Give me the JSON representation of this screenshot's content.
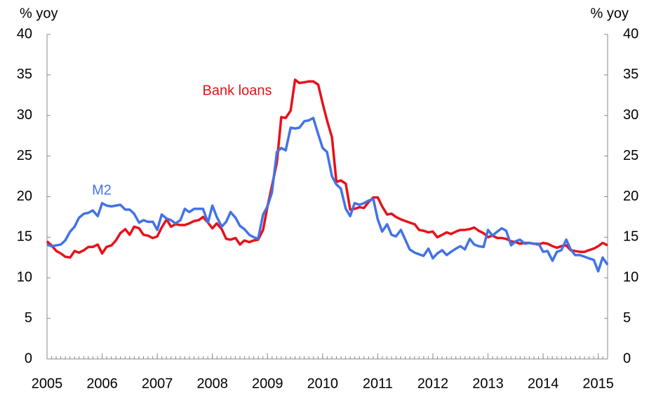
{
  "chart_data": {
    "type": "line",
    "ylabel": "% yoy",
    "y2label": "% yoy",
    "x": [
      2005,
      2005.08,
      2005.17,
      2005.25,
      2005.33,
      2005.42,
      2005.5,
      2005.58,
      2005.67,
      2005.75,
      2005.83,
      2005.92,
      2006,
      2006.08,
      2006.17,
      2006.25,
      2006.33,
      2006.42,
      2006.5,
      2006.58,
      2006.67,
      2006.75,
      2006.83,
      2006.92,
      2007,
      2007.08,
      2007.17,
      2007.25,
      2007.33,
      2007.42,
      2007.5,
      2007.58,
      2007.67,
      2007.75,
      2007.83,
      2007.92,
      2008,
      2008.08,
      2008.17,
      2008.25,
      2008.33,
      2008.42,
      2008.5,
      2008.58,
      2008.67,
      2008.75,
      2008.83,
      2008.92,
      2009,
      2009.08,
      2009.17,
      2009.25,
      2009.33,
      2009.42,
      2009.5,
      2009.58,
      2009.67,
      2009.75,
      2009.83,
      2009.92,
      2010,
      2010.08,
      2010.17,
      2010.25,
      2010.33,
      2010.42,
      2010.5,
      2010.58,
      2010.67,
      2010.75,
      2010.83,
      2010.92,
      2011,
      2011.08,
      2011.17,
      2011.25,
      2011.33,
      2011.42,
      2011.5,
      2011.58,
      2011.67,
      2011.75,
      2011.83,
      2011.92,
      2012,
      2012.08,
      2012.17,
      2012.25,
      2012.33,
      2012.42,
      2012.5,
      2012.58,
      2012.67,
      2012.75,
      2012.83,
      2012.92,
      2013,
      2013.08,
      2013.17,
      2013.25,
      2013.33,
      2013.42,
      2013.5,
      2013.58,
      2013.67,
      2013.75,
      2013.83,
      2013.92,
      2014,
      2014.08,
      2014.17,
      2014.25,
      2014.33,
      2014.42,
      2014.5,
      2014.58,
      2014.67,
      2014.75,
      2014.83,
      2014.92,
      2015,
      2015.08,
      2015.17
    ],
    "series": [
      {
        "name": "Bank loans",
        "color": "#e8101a",
        "values": [
          14.5,
          14.0,
          13.3,
          13.0,
          12.6,
          12.5,
          13.3,
          13.1,
          13.4,
          13.8,
          13.8,
          14.1,
          13.0,
          13.8,
          14.0,
          14.6,
          15.5,
          16.0,
          15.3,
          16.3,
          16.1,
          15.3,
          15.2,
          14.9,
          15.1,
          16.2,
          17.2,
          16.3,
          16.6,
          16.5,
          16.5,
          16.7,
          17.0,
          17.1,
          17.5,
          16.8,
          16.1,
          16.7,
          16.0,
          14.8,
          14.7,
          14.9,
          14.1,
          14.6,
          14.4,
          14.6,
          14.7,
          15.9,
          18.8,
          21.3,
          24.2,
          29.8,
          29.7,
          30.6,
          34.4,
          34.0,
          34.1,
          34.2,
          34.2,
          33.8,
          31.5,
          29.4,
          27.3,
          21.8,
          22.0,
          21.6,
          18.4,
          18.5,
          18.7,
          18.6,
          19.3,
          19.9,
          19.9,
          18.8,
          17.8,
          17.9,
          17.5,
          17.2,
          17.0,
          16.8,
          16.6,
          15.9,
          15.8,
          15.6,
          15.7,
          15.0,
          15.3,
          15.6,
          15.4,
          15.7,
          15.9,
          15.9,
          16.0,
          16.2,
          15.8,
          15.5,
          15.0,
          15.2,
          14.9,
          14.9,
          14.8,
          14.5,
          14.4,
          14.2,
          14.3,
          14.3,
          14.2,
          14.1,
          14.3,
          14.2,
          13.9,
          13.7,
          13.9,
          14.0,
          13.4,
          13.3,
          13.2,
          13.2,
          13.4,
          13.6,
          13.9,
          14.3,
          14.0
        ]
      },
      {
        "name": "M2",
        "color": "#4272e6",
        "values": [
          14.1,
          13.9,
          14.0,
          14.1,
          14.6,
          15.7,
          16.3,
          17.4,
          17.9,
          18.0,
          18.3,
          17.6,
          19.2,
          18.9,
          18.8,
          18.9,
          19.0,
          18.4,
          18.4,
          17.9,
          16.8,
          17.1,
          16.9,
          16.9,
          15.9,
          17.8,
          17.3,
          17.1,
          16.7,
          17.1,
          18.5,
          18.1,
          18.5,
          18.5,
          18.5,
          16.8,
          18.9,
          17.5,
          16.3,
          16.9,
          18.1,
          17.4,
          16.4,
          16.0,
          15.3,
          15.0,
          14.8,
          17.8,
          18.8,
          20.5,
          25.5,
          26.0,
          25.7,
          28.5,
          28.4,
          28.5,
          29.3,
          29.4,
          29.7,
          27.7,
          26.0,
          25.5,
          22.5,
          21.5,
          21.0,
          18.5,
          17.6,
          19.2,
          19.0,
          19.2,
          19.5,
          19.7,
          17.2,
          15.7,
          16.6,
          15.3,
          15.1,
          15.9,
          14.7,
          13.5,
          13.1,
          12.9,
          12.7,
          13.6,
          12.4,
          13.0,
          13.4,
          12.8,
          13.2,
          13.6,
          13.9,
          13.5,
          14.8,
          14.1,
          13.9,
          13.8,
          15.9,
          15.2,
          15.7,
          16.1,
          15.8,
          14.0,
          14.5,
          14.7,
          14.2,
          14.3,
          14.2,
          14.2,
          13.2,
          13.3,
          12.1,
          13.2,
          13.4,
          14.7,
          13.5,
          12.8,
          12.8,
          12.6,
          12.4,
          12.2,
          10.8,
          12.5,
          11.6
        ]
      }
    ],
    "xlim": [
      2005,
      2015.17
    ],
    "xticks": [
      2005,
      2006,
      2007,
      2008,
      2009,
      2010,
      2011,
      2012,
      2013,
      2014,
      2015
    ],
    "ylim": [
      0,
      40
    ],
    "yticks": [
      0,
      5,
      10,
      15,
      20,
      25,
      30,
      35,
      40
    ],
    "y2lim": [
      0,
      40
    ],
    "y2ticks": [
      0,
      5,
      10,
      15,
      20,
      25,
      30,
      35,
      40
    ]
  }
}
